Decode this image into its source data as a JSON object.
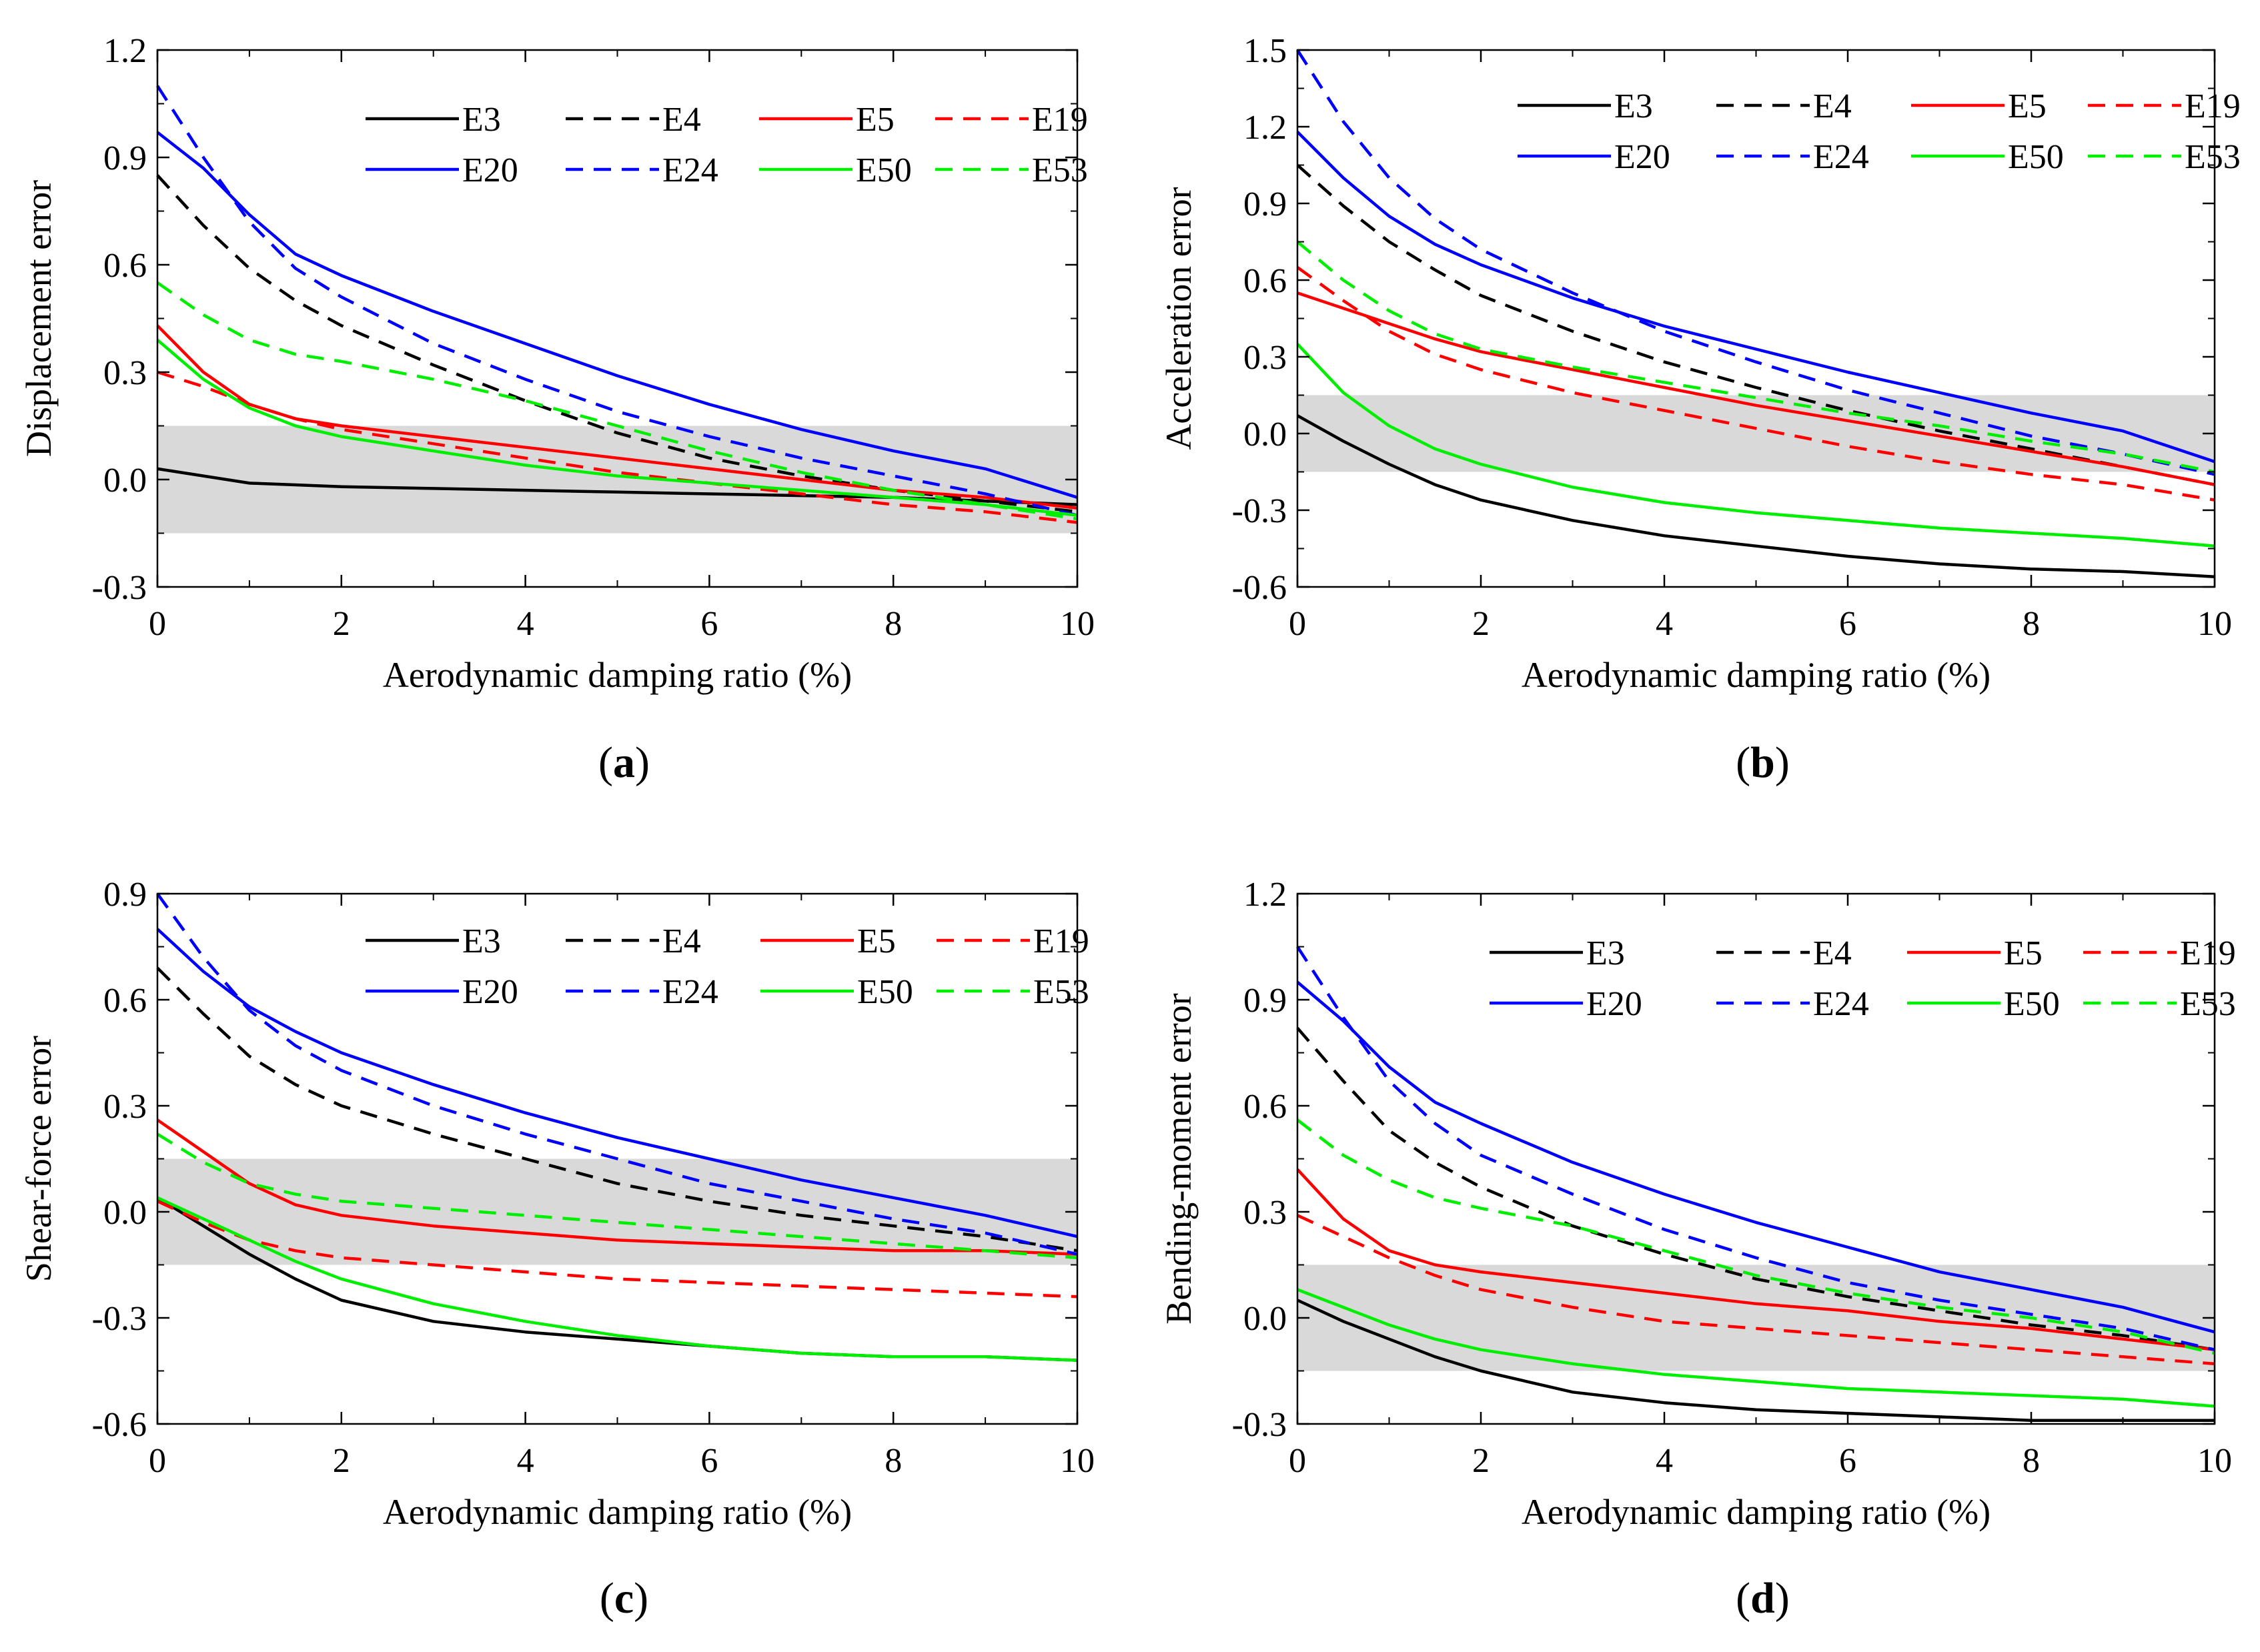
{
  "line_styles": {
    "E3": {
      "color": "#000000",
      "dashed": false
    },
    "E4": {
      "color": "#000000",
      "dashed": true
    },
    "E5": {
      "color": "#ff0000",
      "dashed": false
    },
    "E19": {
      "color": "#ff0000",
      "dashed": true
    },
    "E20": {
      "color": "#0000ff",
      "dashed": false
    },
    "E24": {
      "color": "#0000ff",
      "dashed": true
    },
    "E50": {
      "color": "#00ee00",
      "dashed": false
    },
    "E53": {
      "color": "#00ee00",
      "dashed": true
    }
  },
  "shade_color": "#d9d9d9",
  "chart_data": [
    {
      "panel": "a",
      "caption_letter": "a",
      "type": "line",
      "title": "",
      "xlabel": "Aerodynamic damping ratio (%)",
      "ylabel": "Displacement error",
      "xlim": [
        0,
        10
      ],
      "ylim": [
        -0.3,
        1.2
      ],
      "xticks": [
        "0",
        "2",
        "4",
        "6",
        "8",
        "10"
      ],
      "yticks": [
        "-0.3",
        "0.0",
        "0.3",
        "0.6",
        "0.9",
        "1.2"
      ],
      "shaded_band": [
        -0.15,
        0.15
      ],
      "x": [
        0,
        0.5,
        1,
        1.5,
        2,
        3,
        4,
        5,
        6,
        7,
        8,
        9,
        10
      ],
      "series": [
        {
          "name": "E3",
          "values": [
            0.03,
            0.01,
            -0.01,
            -0.015,
            -0.02,
            -0.025,
            -0.03,
            -0.035,
            -0.04,
            -0.045,
            -0.05,
            -0.06,
            -0.07
          ]
        },
        {
          "name": "E4",
          "values": [
            0.85,
            0.71,
            0.59,
            0.5,
            0.43,
            0.32,
            0.22,
            0.13,
            0.06,
            0.01,
            -0.03,
            -0.06,
            -0.09
          ]
        },
        {
          "name": "E5",
          "values": [
            0.43,
            0.3,
            0.21,
            0.17,
            0.15,
            0.12,
            0.09,
            0.06,
            0.03,
            0.0,
            -0.03,
            -0.05,
            -0.08
          ]
        },
        {
          "name": "E19",
          "values": [
            0.3,
            0.26,
            0.21,
            0.17,
            0.14,
            0.1,
            0.06,
            0.02,
            -0.01,
            -0.04,
            -0.07,
            -0.09,
            -0.12
          ]
        },
        {
          "name": "E20",
          "values": [
            0.97,
            0.87,
            0.74,
            0.63,
            0.57,
            0.47,
            0.38,
            0.29,
            0.21,
            0.14,
            0.08,
            0.03,
            -0.05
          ]
        },
        {
          "name": "E24",
          "values": [
            1.1,
            0.9,
            0.72,
            0.59,
            0.51,
            0.38,
            0.28,
            0.19,
            0.12,
            0.06,
            0.01,
            -0.04,
            -0.1
          ]
        },
        {
          "name": "E50",
          "values": [
            0.39,
            0.28,
            0.2,
            0.15,
            0.12,
            0.08,
            0.04,
            0.01,
            -0.01,
            -0.03,
            -0.05,
            -0.07,
            -0.1
          ]
        },
        {
          "name": "E53",
          "values": [
            0.55,
            0.46,
            0.39,
            0.35,
            0.33,
            0.28,
            0.22,
            0.15,
            0.08,
            0.02,
            -0.03,
            -0.07,
            -0.11
          ]
        }
      ]
    },
    {
      "panel": "b",
      "caption_letter": "b",
      "type": "line",
      "title": "",
      "xlabel": "Aerodynamic damping ratio (%)",
      "ylabel": "Acceleration error",
      "xlim": [
        0,
        10
      ],
      "ylim": [
        -0.6,
        1.5
      ],
      "xticks": [
        "0",
        "2",
        "4",
        "6",
        "8",
        "10"
      ],
      "yticks": [
        "-0.6",
        "-0.3",
        "0.0",
        "0.3",
        "0.6",
        "0.9",
        "1.2",
        "1.5"
      ],
      "shaded_band": [
        -0.15,
        0.15
      ],
      "x": [
        0,
        0.5,
        1,
        1.5,
        2,
        3,
        4,
        5,
        6,
        7,
        8,
        9,
        10
      ],
      "series": [
        {
          "name": "E3",
          "values": [
            0.07,
            -0.03,
            -0.12,
            -0.2,
            -0.26,
            -0.34,
            -0.4,
            -0.44,
            -0.48,
            -0.51,
            -0.53,
            -0.54,
            -0.56
          ]
        },
        {
          "name": "E4",
          "values": [
            1.05,
            0.89,
            0.75,
            0.64,
            0.54,
            0.4,
            0.28,
            0.18,
            0.09,
            0.01,
            -0.06,
            -0.13,
            -0.2
          ]
        },
        {
          "name": "E5",
          "values": [
            0.55,
            0.49,
            0.43,
            0.37,
            0.32,
            0.25,
            0.18,
            0.11,
            0.05,
            -0.01,
            -0.07,
            -0.13,
            -0.2
          ]
        },
        {
          "name": "E19",
          "values": [
            0.65,
            0.52,
            0.4,
            0.31,
            0.25,
            0.16,
            0.09,
            0.02,
            -0.05,
            -0.11,
            -0.16,
            -0.2,
            -0.26
          ]
        },
        {
          "name": "E20",
          "values": [
            1.18,
            1.0,
            0.85,
            0.74,
            0.66,
            0.53,
            0.42,
            0.33,
            0.24,
            0.16,
            0.08,
            0.01,
            -0.11
          ]
        },
        {
          "name": "E24",
          "values": [
            1.5,
            1.22,
            1.0,
            0.84,
            0.72,
            0.55,
            0.4,
            0.28,
            0.17,
            0.08,
            -0.01,
            -0.08,
            -0.16
          ]
        },
        {
          "name": "E50",
          "values": [
            0.35,
            0.16,
            0.03,
            -0.06,
            -0.12,
            -0.21,
            -0.27,
            -0.31,
            -0.34,
            -0.37,
            -0.39,
            -0.41,
            -0.44
          ]
        },
        {
          "name": "E53",
          "values": [
            0.75,
            0.6,
            0.48,
            0.39,
            0.33,
            0.26,
            0.2,
            0.14,
            0.08,
            0.03,
            -0.03,
            -0.08,
            -0.15
          ]
        }
      ]
    },
    {
      "panel": "c",
      "caption_letter": "c",
      "type": "line",
      "title": "",
      "xlabel": "Aerodynamic damping ratio (%)",
      "ylabel": "Shear-force error",
      "xlim": [
        0,
        10
      ],
      "ylim": [
        -0.6,
        0.9
      ],
      "xticks": [
        "0",
        "2",
        "4",
        "6",
        "8",
        "10"
      ],
      "yticks": [
        "-0.6",
        "-0.3",
        "0.0",
        "0.3",
        "0.6",
        "0.9"
      ],
      "shaded_band": [
        -0.15,
        0.15
      ],
      "x": [
        0,
        0.5,
        1,
        1.5,
        2,
        3,
        4,
        5,
        6,
        7,
        8,
        9,
        10
      ],
      "series": [
        {
          "name": "E3",
          "values": [
            0.04,
            -0.04,
            -0.12,
            -0.19,
            -0.25,
            -0.31,
            -0.34,
            -0.36,
            -0.38,
            -0.4,
            -0.41,
            -0.41,
            -0.42
          ]
        },
        {
          "name": "E4",
          "values": [
            0.69,
            0.56,
            0.44,
            0.36,
            0.3,
            0.22,
            0.15,
            0.08,
            0.03,
            -0.01,
            -0.04,
            -0.07,
            -0.11
          ]
        },
        {
          "name": "E5",
          "values": [
            0.26,
            0.17,
            0.08,
            0.02,
            -0.01,
            -0.04,
            -0.06,
            -0.08,
            -0.09,
            -0.1,
            -0.11,
            -0.11,
            -0.12
          ]
        },
        {
          "name": "E19",
          "values": [
            0.03,
            -0.03,
            -0.08,
            -0.11,
            -0.13,
            -0.15,
            -0.17,
            -0.19,
            -0.2,
            -0.21,
            -0.22,
            -0.23,
            -0.24
          ]
        },
        {
          "name": "E20",
          "values": [
            0.8,
            0.68,
            0.58,
            0.51,
            0.45,
            0.36,
            0.28,
            0.21,
            0.15,
            0.09,
            0.04,
            -0.01,
            -0.07
          ]
        },
        {
          "name": "E24",
          "values": [
            0.9,
            0.72,
            0.57,
            0.47,
            0.4,
            0.3,
            0.22,
            0.15,
            0.08,
            0.03,
            -0.02,
            -0.06,
            -0.12
          ]
        },
        {
          "name": "E50",
          "values": [
            0.04,
            -0.02,
            -0.08,
            -0.14,
            -0.19,
            -0.26,
            -0.31,
            -0.35,
            -0.38,
            -0.4,
            -0.41,
            -0.41,
            -0.42
          ]
        },
        {
          "name": "E53",
          "values": [
            0.22,
            0.14,
            0.08,
            0.05,
            0.03,
            0.01,
            -0.01,
            -0.03,
            -0.05,
            -0.07,
            -0.09,
            -0.11,
            -0.13
          ]
        }
      ]
    },
    {
      "panel": "d",
      "caption_letter": "d",
      "type": "line",
      "title": "",
      "xlabel": "Aerodynamic damping ratio (%)",
      "ylabel": "Bending-moment error",
      "xlim": [
        0,
        10
      ],
      "ylim": [
        -0.3,
        1.2
      ],
      "xticks": [
        "0",
        "2",
        "4",
        "6",
        "8",
        "10"
      ],
      "yticks": [
        "-0.3",
        "0.0",
        "0.3",
        "0.6",
        "0.9",
        "1.2"
      ],
      "shaded_band": [
        -0.15,
        0.15
      ],
      "x": [
        0,
        0.5,
        1,
        1.5,
        2,
        3,
        4,
        5,
        6,
        7,
        8,
        9,
        10
      ],
      "series": [
        {
          "name": "E3",
          "values": [
            0.05,
            -0.01,
            -0.06,
            -0.11,
            -0.15,
            -0.21,
            -0.24,
            -0.26,
            -0.27,
            -0.28,
            -0.29,
            -0.29,
            -0.29
          ]
        },
        {
          "name": "E4",
          "values": [
            0.82,
            0.67,
            0.53,
            0.44,
            0.37,
            0.26,
            0.18,
            0.11,
            0.06,
            0.02,
            -0.02,
            -0.05,
            -0.09
          ]
        },
        {
          "name": "E5",
          "values": [
            0.42,
            0.28,
            0.19,
            0.15,
            0.13,
            0.1,
            0.07,
            0.04,
            0.02,
            -0.01,
            -0.03,
            -0.06,
            -0.09
          ]
        },
        {
          "name": "E19",
          "values": [
            0.29,
            0.23,
            0.17,
            0.12,
            0.08,
            0.03,
            -0.01,
            -0.03,
            -0.05,
            -0.07,
            -0.09,
            -0.11,
            -0.13
          ]
        },
        {
          "name": "E20",
          "values": [
            0.95,
            0.84,
            0.71,
            0.61,
            0.55,
            0.44,
            0.35,
            0.27,
            0.2,
            0.13,
            0.08,
            0.03,
            -0.04
          ]
        },
        {
          "name": "E24",
          "values": [
            1.05,
            0.85,
            0.67,
            0.55,
            0.46,
            0.35,
            0.25,
            0.17,
            0.1,
            0.05,
            0.01,
            -0.03,
            -0.09
          ]
        },
        {
          "name": "E50",
          "values": [
            0.08,
            0.03,
            -0.02,
            -0.06,
            -0.09,
            -0.13,
            -0.16,
            -0.18,
            -0.2,
            -0.21,
            -0.22,
            -0.23,
            -0.25
          ]
        },
        {
          "name": "E53",
          "values": [
            0.56,
            0.46,
            0.39,
            0.34,
            0.31,
            0.26,
            0.19,
            0.12,
            0.07,
            0.03,
            0.0,
            -0.04,
            -0.1
          ]
        }
      ]
    }
  ]
}
